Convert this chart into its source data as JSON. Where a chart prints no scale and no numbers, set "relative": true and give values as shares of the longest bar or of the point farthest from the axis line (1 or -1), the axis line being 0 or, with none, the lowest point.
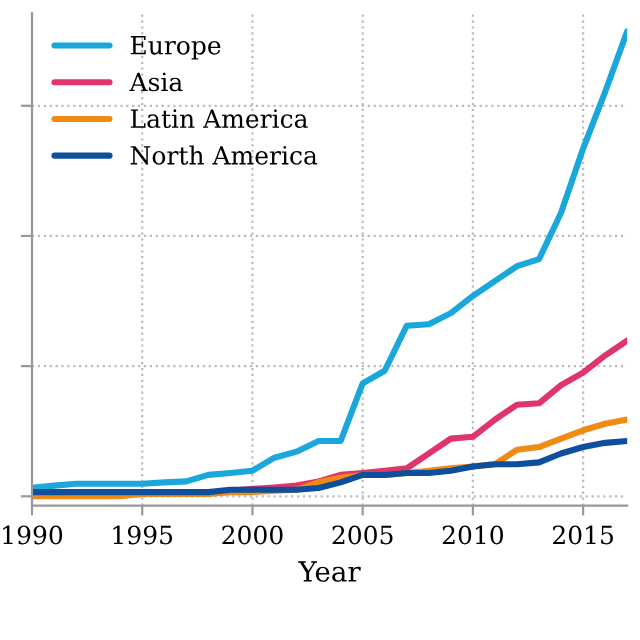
{
  "chart_data": {
    "type": "line",
    "xlabel": "Year",
    "relative": true,
    "x": [
      1990,
      1991,
      1992,
      1993,
      1994,
      1995,
      1996,
      1997,
      1998,
      1999,
      2000,
      2001,
      2002,
      2003,
      2004,
      2005,
      2006,
      2007,
      2008,
      2009,
      2010,
      2011,
      2012,
      2013,
      2014,
      2015,
      2016,
      2017
    ],
    "xlim": [
      1990,
      2017
    ],
    "xticks": [
      1990,
      1995,
      2000,
      2005,
      2010,
      2015
    ],
    "series": [
      {
        "name": "Europe",
        "color": "#1aa7dc",
        "values": [
          0.018,
          0.023,
          0.027,
          0.027,
          0.027,
          0.027,
          0.03,
          0.032,
          0.046,
          0.05,
          0.055,
          0.083,
          0.096,
          0.119,
          0.119,
          0.243,
          0.27,
          0.367,
          0.37,
          0.394,
          0.431,
          0.463,
          0.495,
          0.51,
          0.61,
          0.748,
          0.87,
          1.0
        ]
      },
      {
        "name": "Asia",
        "color": "#e0356a",
        "values": [
          null,
          null,
          null,
          null,
          null,
          null,
          null,
          null,
          null,
          0.012,
          0.016,
          0.019,
          0.023,
          0.032,
          0.046,
          0.05,
          0.055,
          0.06,
          0.092,
          0.124,
          0.128,
          0.165,
          0.197,
          0.2,
          0.239,
          0.266,
          0.303,
          0.335
        ]
      },
      {
        "name": "Latin America",
        "color": "#f08a12",
        "values": [
          0,
          0,
          0,
          0,
          0,
          0.005,
          0.005,
          0.005,
          0.005,
          0.009,
          0.009,
          0.012,
          0.014,
          0.03,
          0.04,
          0.046,
          0.046,
          0.05,
          0.055,
          0.06,
          0.064,
          0.069,
          0.1,
          0.106,
          0.124,
          0.142,
          0.156,
          0.165
        ]
      },
      {
        "name": "North America",
        "color": "#0d4f9c",
        "values": [
          0.009,
          0.009,
          0.009,
          0.009,
          0.009,
          0.009,
          0.009,
          0.009,
          0.009,
          0.014,
          0.014,
          0.014,
          0.014,
          0.018,
          0.03,
          0.046,
          0.046,
          0.05,
          0.05,
          0.055,
          0.064,
          0.069,
          0.069,
          0.073,
          0.092,
          0.106,
          0.115,
          0.119
        ]
      }
    ],
    "grid": true,
    "legend": "top left",
    "line_style": "solid",
    "marker": "none"
  }
}
